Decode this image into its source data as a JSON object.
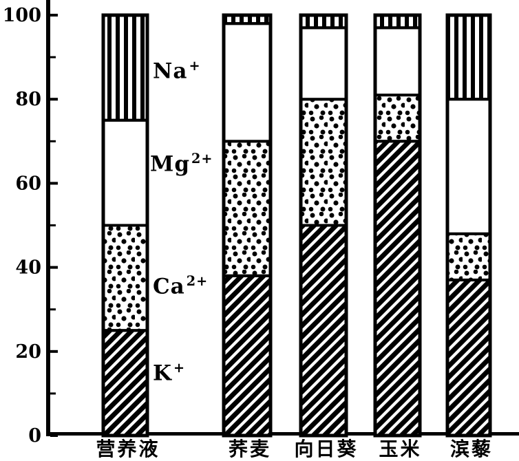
{
  "figure": {
    "background": "#ffffff",
    "ink": "#000000",
    "description": "Scanned black-and-white stacked percentage bar chart of ion composition"
  },
  "chart_data": {
    "type": "bar",
    "subtype": "stacked-percentage",
    "title": "",
    "xlabel": "",
    "ylabel": "",
    "ylim": [
      0,
      100
    ],
    "y_major_ticks": [
      0,
      20,
      40,
      60,
      80,
      100
    ],
    "y_minor_ticks": [
      10,
      30,
      50,
      70,
      90
    ],
    "grid": false,
    "legend_position": "annotations-beside-first-bar",
    "categories": [
      "营养液",
      "荞麦",
      "向日葵",
      "玉米",
      "滨藜"
    ],
    "series": [
      {
        "name": "K⁺",
        "pattern": "diagonal-hatch",
        "values": [
          25,
          38,
          50,
          70,
          37
        ]
      },
      {
        "name": "Ca²⁺",
        "pattern": "dots",
        "values": [
          25,
          32,
          30,
          11,
          11
        ]
      },
      {
        "name": "Mg²⁺",
        "pattern": "blank",
        "values": [
          25,
          28,
          17,
          16,
          32
        ]
      },
      {
        "name": "Na⁺",
        "pattern": "vertical-stripes",
        "values": [
          25,
          2,
          3,
          3,
          20
        ]
      }
    ],
    "ion_labels": [
      {
        "base": "Na",
        "charge": "+"
      },
      {
        "base": "Mg",
        "charge": "2+"
      },
      {
        "base": "Ca",
        "charge": "2+"
      },
      {
        "base": "K",
        "charge": "+"
      }
    ]
  }
}
